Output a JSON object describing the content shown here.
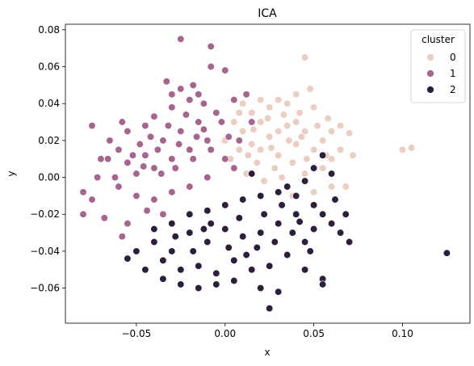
{
  "chart_data": {
    "type": "scatter",
    "title": "ICA",
    "xlabel": "x",
    "ylabel": "y",
    "xlim": [
      -0.09,
      0.138
    ],
    "ylim": [
      -0.079,
      0.083
    ],
    "xticks": [
      -0.05,
      0.0,
      0.05,
      0.1
    ],
    "xtick_labels": [
      "−0.05",
      "0.00",
      "0.05",
      "0.10"
    ],
    "yticks": [
      -0.06,
      -0.04,
      -0.02,
      0.0,
      0.02,
      0.04,
      0.06,
      0.08
    ],
    "ytick_labels": [
      "−0.06",
      "−0.04",
      "−0.02",
      "0.00",
      "0.02",
      "0.04",
      "0.06",
      "0.08"
    ],
    "grid": false,
    "legend": {
      "title": "cluster",
      "placement": "top-right"
    },
    "series": [
      {
        "name": "0",
        "color": "#ebcdc1",
        "points": [
          [
            0.015,
            0.018
          ],
          [
            0.025,
            0.022
          ],
          [
            0.035,
            0.028
          ],
          [
            0.02,
            0.03
          ],
          [
            0.03,
            0.012
          ],
          [
            0.04,
            0.018
          ],
          [
            0.045,
            0.025
          ],
          [
            0.01,
            0.025
          ],
          [
            0.018,
            0.008
          ],
          [
            0.028,
            0.005
          ],
          [
            0.038,
            0.008
          ],
          [
            0.05,
            0.015
          ],
          [
            0.055,
            0.02
          ],
          [
            0.06,
            0.025
          ],
          [
            0.065,
            0.028
          ],
          [
            0.07,
            0.024
          ],
          [
            0.042,
            0.035
          ],
          [
            0.05,
            0.038
          ],
          [
            0.035,
            0.04
          ],
          [
            0.025,
            0.038
          ],
          [
            0.015,
            0.035
          ],
          [
            0.008,
            0.015
          ],
          [
            0.012,
            0.002
          ],
          [
            0.022,
            -0.002
          ],
          [
            0.032,
            0.0
          ],
          [
            0.045,
            0.002
          ],
          [
            0.055,
            0.005
          ],
          [
            0.06,
            0.01
          ],
          [
            0.065,
            0.015
          ],
          [
            0.04,
            0.045
          ],
          [
            0.048,
            0.048
          ],
          [
            0.045,
            0.065
          ],
          [
            0.03,
            0.042
          ],
          [
            0.02,
            0.042
          ],
          [
            0.01,
            0.04
          ],
          [
            0.005,
            0.03
          ],
          [
            0.0,
            0.02
          ],
          [
            0.003,
            0.01
          ],
          [
            0.016,
            0.026
          ],
          [
            0.026,
            0.016
          ],
          [
            0.036,
            0.02
          ],
          [
            0.046,
            0.01
          ],
          [
            0.052,
            0.028
          ],
          [
            0.058,
            0.032
          ],
          [
            0.1,
            0.015
          ],
          [
            0.105,
            0.016
          ],
          [
            0.072,
            0.012
          ],
          [
            0.06,
            -0.005
          ],
          [
            0.05,
            -0.008
          ],
          [
            0.038,
            -0.01
          ],
          [
            0.068,
            -0.005
          ],
          [
            0.02,
            0.015
          ],
          [
            0.03,
            0.025
          ],
          [
            0.04,
            0.03
          ],
          [
            0.013,
            0.012
          ],
          [
            0.008,
            0.035
          ],
          [
            0.033,
            0.034
          ],
          [
            0.043,
            0.022
          ],
          [
            0.057,
            0.012
          ],
          [
            0.024,
            0.032
          ]
        ]
      },
      {
        "name": "1",
        "color": "#a7648f",
        "points": [
          [
            -0.02,
            0.015
          ],
          [
            -0.03,
            0.01
          ],
          [
            -0.01,
            0.02
          ],
          [
            -0.04,
            0.005
          ],
          [
            -0.025,
            0.025
          ],
          [
            -0.015,
            0.03
          ],
          [
            -0.035,
            0.02
          ],
          [
            -0.045,
            0.012
          ],
          [
            -0.05,
            0.002
          ],
          [
            -0.055,
            0.008
          ],
          [
            -0.06,
            0.015
          ],
          [
            -0.065,
            0.02
          ],
          [
            -0.07,
            0.01
          ],
          [
            -0.075,
            0.028
          ],
          [
            -0.08,
            -0.008
          ],
          [
            -0.08,
            -0.02
          ],
          [
            -0.072,
            0.0
          ],
          [
            -0.06,
            -0.005
          ],
          [
            -0.05,
            -0.01
          ],
          [
            -0.04,
            -0.012
          ],
          [
            -0.03,
            -0.008
          ],
          [
            -0.02,
            -0.005
          ],
          [
            -0.01,
            0.0
          ],
          [
            0.0,
            0.01
          ],
          [
            -0.005,
            0.035
          ],
          [
            -0.012,
            0.04
          ],
          [
            -0.02,
            0.042
          ],
          [
            -0.03,
            0.038
          ],
          [
            -0.04,
            0.033
          ],
          [
            -0.018,
            0.05
          ],
          [
            -0.008,
            0.06
          ],
          [
            0.0,
            0.058
          ],
          [
            -0.025,
            0.048
          ],
          [
            -0.025,
            0.075
          ],
          [
            -0.008,
            0.071
          ],
          [
            -0.033,
            0.052
          ],
          [
            -0.045,
            0.028
          ],
          [
            -0.055,
            0.025
          ],
          [
            -0.058,
            0.03
          ],
          [
            -0.048,
            0.018
          ],
          [
            -0.038,
            0.015
          ],
          [
            -0.028,
            0.005
          ],
          [
            -0.018,
            0.01
          ],
          [
            -0.008,
            0.015
          ],
          [
            0.002,
            0.022
          ],
          [
            -0.044,
            -0.018
          ],
          [
            -0.035,
            -0.02
          ],
          [
            -0.055,
            -0.025
          ],
          [
            -0.058,
            -0.032
          ],
          [
            -0.068,
            -0.022
          ],
          [
            -0.075,
            -0.012
          ],
          [
            -0.062,
            0.0
          ],
          [
            -0.052,
            0.012
          ],
          [
            -0.042,
            0.022
          ],
          [
            -0.032,
            0.028
          ],
          [
            -0.022,
            0.034
          ],
          [
            -0.012,
            0.026
          ],
          [
            -0.002,
            0.03
          ],
          [
            0.005,
            0.042
          ],
          [
            0.012,
            0.045
          ],
          [
            0.015,
            0.03
          ],
          [
            0.008,
            0.02
          ],
          [
            -0.026,
            0.018
          ],
          [
            -0.016,
            0.022
          ],
          [
            -0.036,
            0.002
          ],
          [
            -0.046,
            0.006
          ],
          [
            -0.066,
            0.01
          ],
          [
            -0.03,
            0.045
          ],
          [
            -0.015,
            0.045
          ],
          [
            0.005,
            0.005
          ]
        ]
      },
      {
        "name": "2",
        "color": "#2d1e3e",
        "points": [
          [
            -0.02,
            -0.03
          ],
          [
            -0.01,
            -0.035
          ],
          [
            0.0,
            -0.028
          ],
          [
            0.01,
            -0.032
          ],
          [
            0.02,
            -0.03
          ],
          [
            0.03,
            -0.025
          ],
          [
            0.04,
            -0.02
          ],
          [
            -0.03,
            -0.04
          ],
          [
            -0.04,
            -0.035
          ],
          [
            -0.035,
            -0.045
          ],
          [
            -0.025,
            -0.05
          ],
          [
            -0.015,
            -0.048
          ],
          [
            -0.005,
            -0.052
          ],
          [
            0.005,
            -0.045
          ],
          [
            0.015,
            -0.05
          ],
          [
            0.025,
            -0.048
          ],
          [
            0.035,
            -0.042
          ],
          [
            0.045,
            -0.035
          ],
          [
            0.05,
            -0.028
          ],
          [
            0.055,
            -0.02
          ],
          [
            0.06,
            -0.025
          ],
          [
            0.065,
            -0.03
          ],
          [
            0.07,
            -0.035
          ],
          [
            0.068,
            -0.02
          ],
          [
            0.062,
            -0.012
          ],
          [
            0.05,
            -0.015
          ],
          [
            0.04,
            -0.01
          ],
          [
            0.03,
            -0.008
          ],
          [
            0.02,
            -0.01
          ],
          [
            0.01,
            -0.012
          ],
          [
            0.0,
            -0.015
          ],
          [
            -0.01,
            -0.018
          ],
          [
            -0.02,
            -0.02
          ],
          [
            -0.03,
            -0.025
          ],
          [
            -0.04,
            -0.028
          ],
          [
            -0.05,
            -0.04
          ],
          [
            -0.055,
            -0.044
          ],
          [
            -0.045,
            -0.05
          ],
          [
            -0.035,
            -0.055
          ],
          [
            -0.025,
            -0.058
          ],
          [
            -0.015,
            -0.06
          ],
          [
            -0.005,
            -0.058
          ],
          [
            0.005,
            -0.056
          ],
          [
            0.02,
            -0.06
          ],
          [
            0.03,
            -0.062
          ],
          [
            0.025,
            -0.071
          ],
          [
            0.055,
            -0.055
          ],
          [
            0.055,
            -0.058
          ],
          [
            0.045,
            -0.05
          ],
          [
            0.125,
            -0.041
          ],
          [
            0.06,
            0.002
          ],
          [
            0.055,
            0.012
          ],
          [
            0.045,
            -0.002
          ],
          [
            0.035,
            -0.005
          ],
          [
            0.015,
            0.002
          ],
          [
            0.05,
            0.005
          ],
          [
            -0.008,
            -0.025
          ],
          [
            0.008,
            -0.022
          ],
          [
            0.018,
            -0.038
          ],
          [
            0.028,
            -0.035
          ],
          [
            0.038,
            -0.03
          ],
          [
            -0.018,
            -0.04
          ],
          [
            -0.028,
            -0.032
          ],
          [
            0.012,
            -0.042
          ],
          [
            0.022,
            -0.02
          ],
          [
            0.032,
            -0.015
          ],
          [
            0.042,
            -0.024
          ],
          [
            -0.012,
            -0.028
          ],
          [
            0.002,
            -0.038
          ],
          [
            0.048,
            -0.04
          ]
        ]
      }
    ]
  }
}
